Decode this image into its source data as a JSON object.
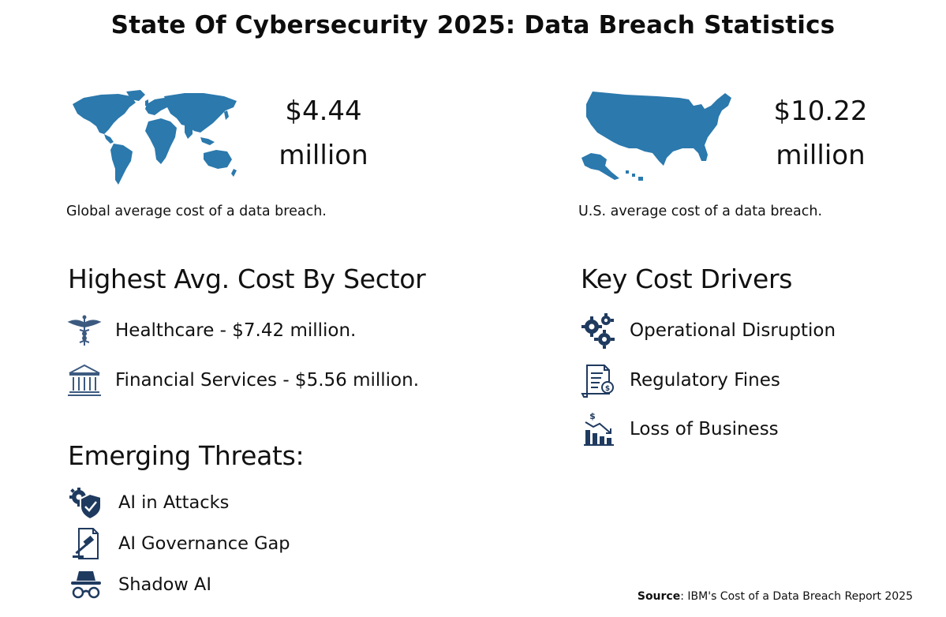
{
  "title": "State Of Cybersecurity 2025: Data Breach Statistics",
  "colors": {
    "map_blue": "#2b79ad",
    "icon_navy": "#1f3a5f",
    "text": "#111111"
  },
  "global_stat": {
    "value_line1": "$4.44",
    "value_line2": "million",
    "caption": "Global average cost of a data breach.",
    "map_icon": "world-map"
  },
  "us_stat": {
    "value_line1": "$10.22",
    "value_line2": "million",
    "caption": "U.S. average cost of a data breach.",
    "map_icon": "us-map"
  },
  "sector": {
    "heading": "Highest Avg. Cost By Sector",
    "items": [
      {
        "icon": "caduceus-icon",
        "label": "Healthcare - $7.42 million."
      },
      {
        "icon": "bank-icon",
        "label": "Financial Services - $5.56 million."
      }
    ]
  },
  "drivers": {
    "heading": "Key Cost Drivers",
    "items": [
      {
        "icon": "gears-icon",
        "label": "Operational Disruption"
      },
      {
        "icon": "fine-document-icon",
        "label": "Regulatory Fines"
      },
      {
        "icon": "declining-chart-icon",
        "label": "Loss of Business"
      }
    ]
  },
  "threats": {
    "heading": "Emerging Threats:",
    "items": [
      {
        "icon": "shield-gear-icon",
        "label": "AI in Attacks"
      },
      {
        "icon": "gavel-document-icon",
        "label": "AI Governance Gap"
      },
      {
        "icon": "spy-icon",
        "label": "Shadow AI"
      }
    ]
  },
  "source": {
    "prefix": "Source",
    "text": ": IBM's Cost of a Data Breach Report 2025"
  }
}
